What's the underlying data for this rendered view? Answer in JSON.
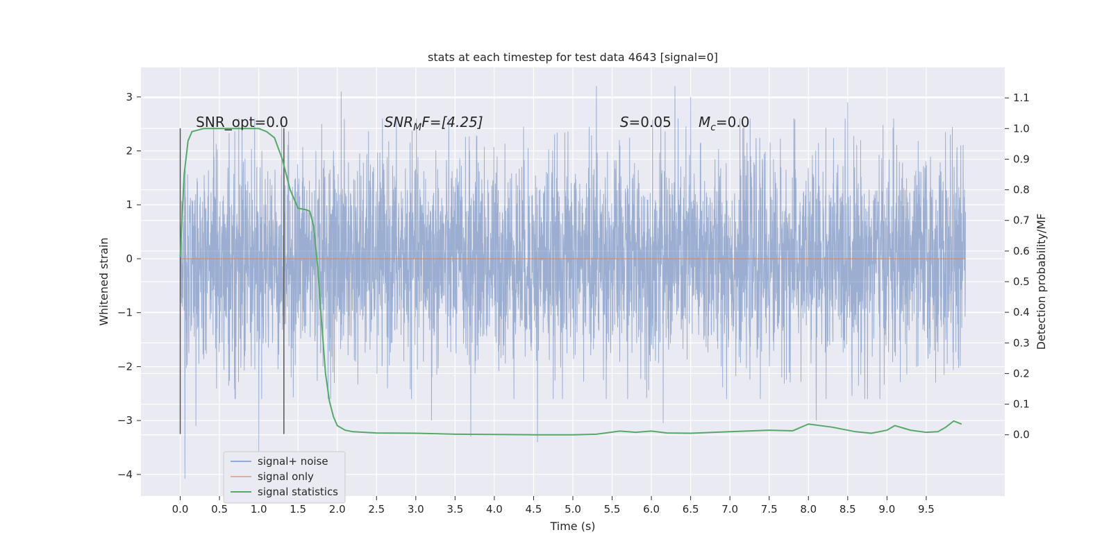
{
  "chart_data": {
    "type": "line",
    "title": "stats at each timestep for test data 4643 [signal=0]",
    "xlabel": "Time (s)",
    "ylabel_left": "Whitened strain",
    "ylabel_right": "Detection probability/MF",
    "xlim": [
      -0.5,
      10.5
    ],
    "ylim_left": [
      -4.4,
      3.55
    ],
    "ylim_right": [
      -0.2,
      1.2
    ],
    "x_ticks": [
      0.0,
      0.5,
      1.0,
      1.5,
      2.0,
      2.5,
      3.0,
      3.5,
      4.0,
      4.5,
      5.0,
      5.5,
      6.0,
      6.5,
      7.0,
      7.5,
      8.0,
      8.5,
      9.0,
      9.5
    ],
    "x_tick_labels": [
      "0.0",
      "0.5",
      "1.0",
      "1.5",
      "2.0",
      "2.5",
      "3.0",
      "3.5",
      "4.0",
      "4.5",
      "5.0",
      "5.5",
      "6.0",
      "6.5",
      "7.0",
      "7.5",
      "8.0",
      "8.5",
      "9.0",
      "9.5"
    ],
    "y_left_ticks": [
      -4,
      -3,
      -2,
      -1,
      0,
      1,
      2,
      3
    ],
    "y_left_tick_labels": [
      "−4",
      "−3",
      "−2",
      "−1",
      "0",
      "1",
      "2",
      "3"
    ],
    "y_right_ticks": [
      0.0,
      0.1,
      0.2,
      0.3,
      0.4,
      0.5,
      0.6,
      0.7,
      0.8,
      0.9,
      1.0,
      1.1
    ],
    "y_right_tick_labels": [
      "0.0",
      "0.1",
      "0.2",
      "0.3",
      "0.4",
      "0.5",
      "0.6",
      "0.7",
      "0.8",
      "0.9",
      "1.0",
      "1.1"
    ],
    "grid": true,
    "legend_position": "lower-left",
    "colors": {
      "background": "#eaeaf2",
      "grid": "#ffffff",
      "noise": "#4c72b0",
      "signal_only": "#dd8452",
      "statistics": "#55a868",
      "markers": "#555555"
    },
    "series": [
      {
        "name": "signal+ noise",
        "axis": "left",
        "description_type": "noisy-strain",
        "x_range": [
          0.0,
          10.0
        ],
        "typical_band": [
          -1.3,
          1.3
        ],
        "extremes": [
          [
            0.06,
            -4.08
          ],
          [
            0.2,
            -3.1
          ],
          [
            1.0,
            -3.8
          ],
          [
            2.05,
            3.1
          ],
          [
            3.2,
            -3.0
          ],
          [
            3.7,
            -3.3
          ],
          [
            4.55,
            -3.4
          ],
          [
            5.3,
            3.2
          ],
          [
            6.3,
            3.2
          ],
          [
            6.5,
            3.0
          ],
          [
            6.15,
            -3.05
          ],
          [
            8.1,
            -3.0
          ],
          [
            8.5,
            2.9
          ]
        ]
      },
      {
        "name": "signal only",
        "axis": "left",
        "x": [
          0.0,
          10.0
        ],
        "y": [
          0.0,
          0.0
        ]
      },
      {
        "name": "signal statistics",
        "axis": "right",
        "x": [
          0.0,
          0.05,
          0.1,
          0.15,
          0.3,
          0.5,
          0.8,
          1.0,
          1.1,
          1.2,
          1.3,
          1.4,
          1.5,
          1.6,
          1.65,
          1.7,
          1.75,
          1.8,
          1.85,
          1.9,
          1.95,
          2.0,
          2.1,
          2.2,
          2.5,
          3.0,
          3.5,
          4.0,
          4.5,
          5.0,
          5.3,
          5.6,
          5.8,
          6.0,
          6.2,
          6.5,
          7.0,
          7.5,
          7.8,
          8.0,
          8.3,
          8.6,
          8.8,
          9.0,
          9.1,
          9.3,
          9.5,
          9.65,
          9.75,
          9.85,
          9.9,
          9.95
        ],
        "y": [
          0.58,
          0.85,
          0.96,
          0.99,
          1.0,
          1.0,
          1.0,
          1.0,
          0.99,
          0.97,
          0.9,
          0.8,
          0.74,
          0.735,
          0.73,
          0.68,
          0.55,
          0.37,
          0.2,
          0.11,
          0.06,
          0.03,
          0.015,
          0.01,
          0.006,
          0.005,
          0.002,
          0.001,
          0.0,
          0.0,
          0.002,
          0.012,
          0.008,
          0.012,
          0.006,
          0.005,
          0.01,
          0.015,
          0.013,
          0.035,
          0.025,
          0.01,
          0.005,
          0.015,
          0.03,
          0.015,
          0.008,
          0.01,
          0.025,
          0.045,
          0.04,
          0.035
        ]
      }
    ],
    "vertical_markers": [
      {
        "x": 0.0,
        "y_bottom": -3.25,
        "y_top": 2.42
      },
      {
        "x": 1.32,
        "y_bottom": -3.25,
        "y_top": 2.42
      }
    ],
    "annotations": [
      {
        "key": "snr_opt",
        "x": 0.2,
        "text_plain": "SNR_opt=0.0"
      },
      {
        "key": "snr_mf",
        "x": 2.6,
        "text_base": "SNR",
        "text_sub": "M",
        "text_tail": "F=[4.25]"
      },
      {
        "key": "s",
        "x": 5.6,
        "text_italic": "S",
        "text_tail": "=0.05"
      },
      {
        "key": "mc",
        "x": 6.6,
        "text_italic": "M",
        "text_sub": "c",
        "text_tail": "=0.0"
      }
    ],
    "legend": [
      "signal+ noise",
      "signal only",
      "signal statistics"
    ]
  }
}
